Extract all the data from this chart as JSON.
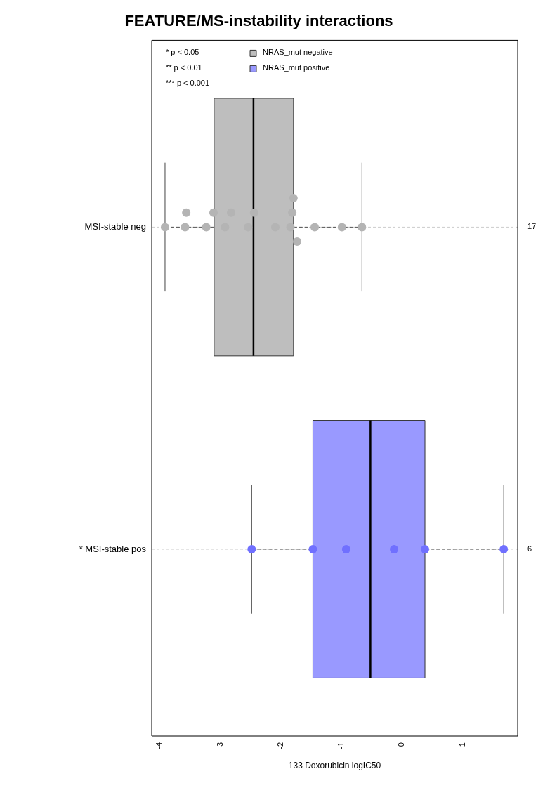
{
  "chart_data": {
    "type": "box",
    "orientation": "horizontal",
    "title": "FEATURE/MS-instability interactions",
    "xlabel": "133 Doxorubicin logIC50",
    "categories": [
      "MSI-stable neg",
      "* MSI-stable pos"
    ],
    "xlim": [
      -4.13,
      1.91
    ],
    "xticks": [
      -4,
      -3,
      -2,
      -1,
      0,
      1
    ],
    "grid": "y",
    "legend": "top",
    "marker": "circle",
    "series": [
      {
        "name": "NRAS_mut negative",
        "color": "#bebebe",
        "boxes": [
          {
            "low": -3.91,
            "q1": -3.1,
            "median": -2.45,
            "q3": -1.79,
            "high": -0.66
          },
          null
        ]
      },
      {
        "name": "NRAS_mut positive",
        "color": "#9999ff",
        "boxes": [
          null,
          {
            "low": -2.48,
            "q1": -1.47,
            "median": -0.52,
            "q3": 0.38,
            "high": 1.68
          }
        ]
      },
      {
        "type": "scatter",
        "color": "#b4b4b4",
        "x": [
          "MSI-stable neg",
          "MSI-stable neg",
          "MSI-stable neg",
          "MSI-stable neg",
          "MSI-stable neg",
          "MSI-stable neg",
          "MSI-stable neg",
          "MSI-stable neg",
          "MSI-stable neg",
          "MSI-stable neg",
          "MSI-stable neg",
          "MSI-stable neg",
          "MSI-stable neg",
          "MSI-stable neg",
          "MSI-stable neg",
          "MSI-stable neg",
          "MSI-stable neg"
        ],
        "values": [
          -3.91,
          -3.58,
          -3.56,
          -3.23,
          -3.11,
          -2.92,
          -2.82,
          -2.54,
          -2.44,
          -2.09,
          -1.84,
          -1.81,
          -1.73,
          -1.79,
          -1.44,
          -0.99,
          -0.66
        ]
      },
      {
        "type": "scatter",
        "color": "#7070ff",
        "x": [
          "* MSI-stable pos",
          "* MSI-stable pos",
          "* MSI-stable pos",
          "* MSI-stable pos",
          "* MSI-stable pos",
          "* MSI-stable pos"
        ],
        "values": [
          -2.48,
          -1.47,
          -0.92,
          -0.13,
          0.38,
          1.68
        ]
      }
    ],
    "annotations": [
      "* p < 0.05",
      "** p < 0.01",
      "*** p < 0.001",
      "17",
      "6"
    ]
  }
}
